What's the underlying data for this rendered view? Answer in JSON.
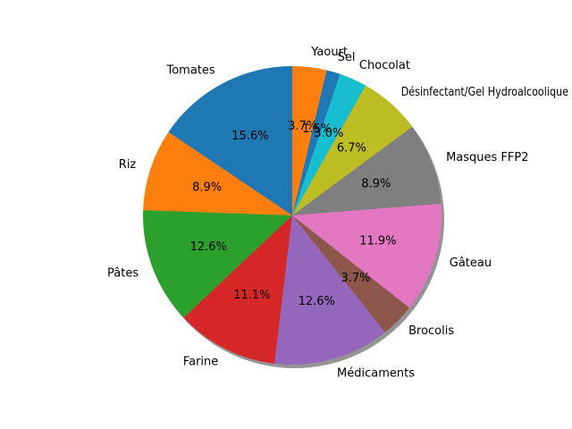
{
  "chart_data": {
    "type": "pie",
    "title": "",
    "start_angle_deg": 90,
    "direction": "counterclockwise",
    "shadow": true,
    "slices": [
      {
        "label": "Tomates",
        "percent": 15.6,
        "pct_label": "15.6%",
        "color": "#1f77b4"
      },
      {
        "label": "Riz",
        "percent": 8.9,
        "pct_label": "8.9%",
        "color": "#ff7f0e"
      },
      {
        "label": "Pâtes",
        "percent": 12.6,
        "pct_label": "12.6%",
        "color": "#2ca02c"
      },
      {
        "label": "Farine",
        "percent": 11.1,
        "pct_label": "11.1%",
        "color": "#d62728"
      },
      {
        "label": "Médicaments",
        "percent": 12.6,
        "pct_label": "12.6%",
        "color": "#9467bd"
      },
      {
        "label": "Brocolis",
        "percent": 3.7,
        "pct_label": "3.7%",
        "color": "#8c564b"
      },
      {
        "label": "Gâteau",
        "percent": 11.9,
        "pct_label": "11.9%",
        "color": "#e377c2"
      },
      {
        "label": "Masques FFP2",
        "percent": 8.9,
        "pct_label": "8.9%",
        "color": "#7f7f7f"
      },
      {
        "label": "Désinfectant/Gel Hydroalcoolique",
        "percent": 6.7,
        "pct_label": "6.7%",
        "color": "#bcbd22"
      },
      {
        "label": "Chocolat",
        "percent": 3.0,
        "pct_label": "3.0%",
        "color": "#17becf"
      },
      {
        "label": "Sel",
        "percent": 1.5,
        "pct_label": "1.5%",
        "color": "#1f77b4"
      },
      {
        "label": "Yaourt",
        "percent": 3.7,
        "pct_label": "3.7%",
        "color": "#ff7f0e"
      }
    ]
  }
}
